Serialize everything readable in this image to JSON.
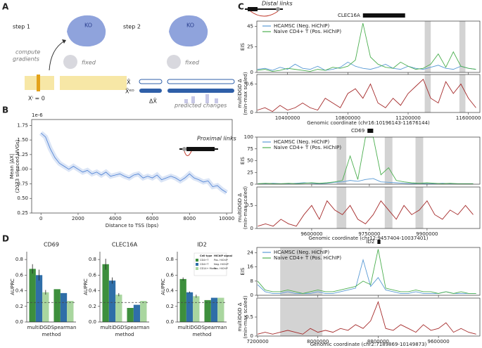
{
  "panel_labels": [
    "A",
    "B",
    "C",
    "D"
  ],
  "diagram": {
    "step1": "step 1",
    "step2": "step 2",
    "ko1": "KO",
    "ko2": "KO",
    "compute": [
      "compute",
      "gradients"
    ],
    "fixed1": "fixed",
    "fixed2": "fixed",
    "xi_zero": "Xⁱ = 0",
    "x_hat": "X̂",
    "x_hat_ko": "X̂ᴷᴼ",
    "delta_x_hat": "ΔX̂",
    "predicted": "predicted changes"
  },
  "chart_data": [
    {
      "type": "line",
      "y_offset_label": "1e-6",
      "inset_label": "Proximal links",
      "xlabel": "Distance to TSS (bps)",
      "ylabel": [
        "Mean |ΔX|",
        "(2073 silenced HVGs)"
      ],
      "color": "#4a7fd4",
      "x": [
        0,
        250,
        500,
        750,
        1000,
        1250,
        1500,
        1750,
        2000,
        2250,
        2500,
        2750,
        3000,
        3250,
        3500,
        3750,
        4000,
        4250,
        4500,
        4750,
        5000,
        5250,
        5500,
        5750,
        6000,
        6250,
        6500,
        6750,
        7000,
        7250,
        7500,
        7750,
        8000,
        8250,
        8500,
        8750,
        9000,
        9250,
        9500,
        9750,
        10000
      ],
      "values": [
        1.62,
        1.55,
        1.35,
        1.2,
        1.1,
        1.05,
        1.0,
        1.05,
        1.0,
        0.95,
        0.98,
        0.92,
        0.95,
        0.9,
        0.95,
        0.88,
        0.9,
        0.92,
        0.88,
        0.85,
        0.9,
        0.92,
        0.85,
        0.88,
        0.85,
        0.9,
        0.82,
        0.85,
        0.88,
        0.85,
        0.8,
        0.85,
        0.92,
        0.85,
        0.82,
        0.78,
        0.8,
        0.7,
        0.72,
        0.65,
        0.6
      ],
      "xlim": [
        -500,
        10300
      ],
      "ylim": [
        0.25,
        1.85
      ],
      "xticks": [
        0,
        2000,
        4000,
        6000,
        8000,
        10000
      ],
      "yticks": [
        0.25,
        {
          "value": 0.5,
          "label": "0.50"
        },
        0.75,
        {
          "value": 1,
          "label": "1.00"
        },
        1.25,
        {
          "value": 1.5,
          "label": "1.50"
        },
        1.75
      ]
    },
    {
      "type": "bar",
      "title": "CD69",
      "ylabel": "AUPRC",
      "xlabel": "method",
      "categories": [
        "multiDGD",
        "Spearman"
      ],
      "series": [
        {
          "name": "CD4+T",
          "signal": "Pos. HiChIP",
          "color": "#3d8f3d",
          "values": [
            0.68,
            0.42
          ],
          "errors": [
            0.06,
            null
          ]
        },
        {
          "name": "CD4+T",
          "signal": "Neg. HiChIP",
          "color": "#2f6ea8",
          "values": [
            0.6,
            0.37
          ],
          "errors": [
            0.07,
            null
          ]
        },
        {
          "name": "CD14+ Mono",
          "signal": "Pos. HiChIP",
          "color": "#a9d69f",
          "values": [
            0.38,
            0.27
          ],
          "errors": [
            0.03,
            null
          ]
        }
      ],
      "reference_line": 0.25,
      "ylim": [
        0,
        0.9
      ],
      "yticks": [
        {
          "value": 0,
          "label": "0.0"
        },
        {
          "value": 0.2,
          "label": "0.2"
        },
        {
          "value": 0.4,
          "label": "0.4"
        },
        {
          "value": 0.6,
          "label": "0.6"
        },
        {
          "value": 0.8,
          "label": "0.8"
        }
      ]
    },
    {
      "type": "bar",
      "title": "CLEC16A",
      "ylabel": "AUPRC",
      "xlabel": "method",
      "categories": [
        "multiDGD",
        "Spearman"
      ],
      "series": [
        {
          "name": "CD4+T",
          "signal": "Pos. HiChIP",
          "color": "#3d8f3d",
          "values": [
            0.74,
            0.18
          ],
          "errors": [
            0.07,
            null
          ]
        },
        {
          "name": "CD4+T",
          "signal": "Neg. HiChIP",
          "color": "#2f6ea8",
          "values": [
            0.53,
            0.22
          ],
          "errors": [
            0.04,
            null
          ]
        },
        {
          "name": "CD14+ Mono",
          "signal": "Pos. HiChIP",
          "color": "#a9d69f",
          "values": [
            0.35,
            0.27
          ],
          "errors": [
            0.02,
            null
          ]
        }
      ],
      "reference_line": 0.25,
      "ylim": [
        0,
        0.9
      ],
      "yticks": [
        {
          "value": 0,
          "label": "0.0"
        },
        {
          "value": 0.2,
          "label": "0.2"
        },
        {
          "value": 0.4,
          "label": "0.4"
        },
        {
          "value": 0.6,
          "label": "0.6"
        },
        {
          "value": 0.8,
          "label": "0.8"
        }
      ]
    },
    {
      "type": "bar",
      "title": "ID2",
      "ylabel": "AUPRC",
      "xlabel": "method",
      "categories": [
        "multiDGD",
        "Spearman"
      ],
      "legend_titles": [
        "Cell type",
        "HiChIP signal"
      ],
      "legend": "upper right",
      "series": [
        {
          "name": "CD4+T",
          "signal": "Pos. HiChIP",
          "color": "#3d8f3d",
          "values": [
            0.55,
            0.28
          ],
          "errors": [
            0.02,
            null
          ]
        },
        {
          "name": "CD4+T",
          "signal": "Neg. HiChIP",
          "color": "#2f6ea8",
          "values": [
            0.38,
            0.31
          ],
          "errors": [
            0.01,
            null
          ]
        },
        {
          "name": "CD14+ Mono",
          "signal": "Pos. HiChIP",
          "color": "#a9d69f",
          "values": [
            0.33,
            0.31
          ],
          "errors": [
            0.02,
            null
          ]
        }
      ],
      "reference_line": 0.25,
      "ylim": [
        0,
        0.9
      ],
      "yticks": [
        {
          "value": 0,
          "label": "0.0"
        },
        {
          "value": 0.2,
          "label": "0.2"
        },
        {
          "value": 0.4,
          "label": "0.4"
        },
        {
          "value": 0.6,
          "label": "0.6"
        },
        {
          "value": 0.8,
          "label": "0.8"
        }
      ]
    },
    {
      "type": "track",
      "header": "Distal links",
      "gene": "CLEC16A",
      "gene_span": [
        10900000,
        11180000
      ],
      "xlabel": "Genomic coordinate (chr16:10196143-11676144)",
      "xlim": [
        10196143,
        11676144
      ],
      "xticks": [
        10400000,
        10800000,
        11200000,
        11600000
      ],
      "highlights": [
        [
          11310000,
          11350000
        ],
        [
          11540000,
          11580000
        ]
      ],
      "x": [
        10200000,
        10250000,
        10300000,
        10350000,
        10400000,
        10450000,
        10500000,
        10550000,
        10600000,
        10650000,
        10700000,
        10750000,
        10800000,
        10850000,
        10900000,
        10950000,
        11000000,
        11050000,
        11100000,
        11150000,
        11200000,
        11250000,
        11300000,
        11350000,
        11400000,
        11450000,
        11500000,
        11550000,
        11600000,
        11650000
      ],
      "tracks": [
        {
          "ylabel": "EIS",
          "ylim": [
            0,
            50
          ],
          "yticks": [
            0,
            25,
            45
          ],
          "series": [
            {
              "name": "HCAMSC (Neg. HiChIP)",
              "color": "#5b9bd5",
              "values": [
                3,
                4,
                2,
                5,
                3,
                8,
                4,
                3,
                6,
                2,
                3,
                5,
                10,
                6,
                4,
                3,
                5,
                8,
                4,
                3,
                6,
                4,
                3,
                5,
                7,
                4,
                3,
                6,
                4,
                3
              ]
            },
            {
              "name": "Naive CD4+ T (Pos. HiChIP)",
              "color": "#4caf50",
              "values": [
                2,
                3,
                1,
                2,
                4,
                3,
                2,
                1,
                3,
                2,
                5,
                4,
                6,
                12,
                48,
                15,
                8,
                5,
                4,
                10,
                6,
                3,
                4,
                8,
                18,
                5,
                20,
                6,
                4,
                3
              ]
            }
          ]
        },
        {
          "ylabel": [
            "multiDGD Δ",
            "(min-max scaled)"
          ],
          "ylim": [
            0,
            0.8
          ],
          "yticks": [
            0,
            0.6
          ],
          "series": [
            {
              "color": "#a52a2a",
              "values": [
                0.05,
                0.1,
                0.02,
                0.15,
                0.05,
                0.1,
                0.2,
                0.1,
                0.05,
                0.3,
                0.2,
                0.1,
                0.4,
                0.5,
                0.3,
                0.6,
                0.2,
                0.1,
                0.3,
                0.15,
                0.4,
                0.55,
                0.7,
                0.3,
                0.2,
                0.65,
                0.4,
                0.6,
                0.3,
                0.1
              ]
            }
          ]
        }
      ]
    },
    {
      "type": "track",
      "gene": "CD69",
      "gene_span": [
        9745000,
        9760000
      ],
      "xlabel": "Genomic coordinate (chr12:9457404-10037401)",
      "xlim": [
        9457404,
        10037401
      ],
      "xticks": [
        9600000,
        9750000,
        9900000
      ],
      "highlights": [
        [
          9665000,
          9690000
        ],
        [
          9790000,
          9810000
        ],
        [
          9870000,
          9890000
        ]
      ],
      "x": [
        9460000,
        9480000,
        9500000,
        9520000,
        9540000,
        9560000,
        9580000,
        9600000,
        9620000,
        9640000,
        9660000,
        9680000,
        9700000,
        9720000,
        9740000,
        9760000,
        9780000,
        9800000,
        9820000,
        9840000,
        9860000,
        9880000,
        9900000,
        9920000,
        9940000,
        9960000,
        9980000,
        10000000,
        10020000
      ],
      "tracks": [
        {
          "ylabel": "EIS",
          "ylim": [
            0,
            100
          ],
          "yticks": [
            0,
            25,
            50,
            75,
            100
          ],
          "series": [
            {
              "name": "HCAMSC (Neg. HiChIP)",
              "color": "#5b9bd5",
              "values": [
                1,
                1,
                2,
                1,
                1,
                2,
                3,
                2,
                1,
                2,
                4,
                5,
                8,
                6,
                10,
                12,
                5,
                4,
                3,
                2,
                1,
                2,
                1,
                1,
                2,
                1,
                1,
                1,
                1
              ]
            },
            {
              "name": "Naive CD4+ T (Pos. HiChIP)",
              "color": "#4caf50",
              "values": [
                1,
                2,
                1,
                1,
                2,
                1,
                2,
                3,
                2,
                3,
                5,
                8,
                60,
                10,
                100,
                100,
                20,
                35,
                8,
                5,
                3,
                2,
                3,
                2,
                1,
                2,
                1,
                1,
                1
              ]
            }
          ]
        },
        {
          "ylabel": [
            "multiDGD Δ",
            "(min-max scaled)"
          ],
          "ylim": [
            0,
            0.9
          ],
          "yticks": [
            0,
            0.5
          ],
          "series": [
            {
              "color": "#a52a2a",
              "values": [
                0.05,
                0.1,
                0.05,
                0.2,
                0.1,
                0.05,
                0.3,
                0.5,
                0.2,
                0.6,
                0.4,
                0.3,
                0.5,
                0.2,
                0.1,
                0.3,
                0.6,
                0.4,
                0.2,
                0.5,
                0.3,
                0.4,
                0.6,
                0.3,
                0.2,
                0.4,
                0.3,
                0.5,
                0.3
              ]
            }
          ]
        }
      ]
    },
    {
      "type": "track",
      "gene": "ID2",
      "gene_span": [
        8790000,
        8830000
      ],
      "xlabel": "Genomic coordinate (chr2:7189869-10149873)",
      "xlim": [
        7189869,
        10149873
      ],
      "xticks": [
        7200000,
        8000000,
        8800000,
        9600000
      ],
      "highlights": [
        [
          7500000,
          8060000
        ]
      ],
      "x": [
        7200000,
        7300000,
        7400000,
        7500000,
        7600000,
        7700000,
        7800000,
        7900000,
        8000000,
        8100000,
        8200000,
        8300000,
        8400000,
        8500000,
        8600000,
        8700000,
        8800000,
        8900000,
        9000000,
        9100000,
        9200000,
        9300000,
        9400000,
        9500000,
        9600000,
        9700000,
        9800000,
        9900000,
        10000000,
        10100000
      ],
      "tracks": [
        {
          "ylabel": "EIS",
          "ylim": [
            0,
            27
          ],
          "yticks": [
            0,
            8,
            16,
            24
          ],
          "series": [
            {
              "name": "HCAMSC (Neg. HiChIP)",
              "color": "#5b9bd5",
              "values": [
                6,
                2,
                1,
                1,
                2,
                1,
                1,
                1,
                2,
                1,
                1,
                2,
                3,
                4,
                20,
                5,
                10,
                3,
                2,
                1,
                1,
                2,
                1,
                1,
                1,
                2,
                1,
                1,
                1,
                1
              ]
            },
            {
              "name": "Naive CD4+ T (Pos. HiChIP)",
              "color": "#4caf50",
              "values": [
                8,
                3,
                2,
                2,
                3,
                2,
                1,
                2,
                3,
                2,
                2,
                3,
                4,
                5,
                8,
                6,
                26,
                4,
                3,
                2,
                2,
                3,
                2,
                2,
                1,
                2,
                1,
                2,
                1,
                1
              ]
            }
          ]
        },
        {
          "ylabel": [
            "multiDGD Δ",
            "(min-max scaled)"
          ],
          "ylim": [
            0,
            1.0
          ],
          "yticks": [
            0,
            0.5
          ],
          "series": [
            {
              "color": "#a52a2a",
              "values": [
                0.05,
                0.1,
                0.05,
                0.1,
                0.15,
                0.1,
                0.05,
                0.2,
                0.1,
                0.15,
                0.1,
                0.2,
                0.15,
                0.3,
                0.2,
                0.4,
                0.9,
                0.2,
                0.15,
                0.3,
                0.2,
                0.1,
                0.3,
                0.15,
                0.2,
                0.35,
                0.1,
                0.2,
                0.1,
                0.05
              ]
            }
          ]
        }
      ]
    }
  ]
}
